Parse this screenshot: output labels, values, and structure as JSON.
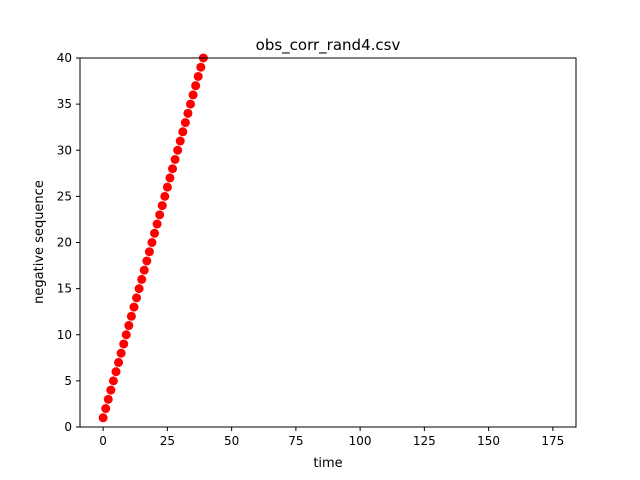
{
  "chart_data": {
    "type": "scatter",
    "title": "obs_corr_rand4.csv",
    "xlabel": "time",
    "ylabel": "negative sequence",
    "xlim": [
      -9,
      184
    ],
    "ylim": [
      0,
      40
    ],
    "x_ticks": [
      0,
      25,
      50,
      75,
      100,
      125,
      150,
      175
    ],
    "y_ticks": [
      0,
      5,
      10,
      15,
      20,
      25,
      30,
      35,
      40
    ],
    "grid": false,
    "marker_color": "#ff0000",
    "series": [
      {
        "x": [
          0,
          1,
          2,
          3,
          4,
          5,
          6,
          7,
          8,
          9,
          10,
          11,
          12,
          13,
          14,
          15,
          16,
          17,
          18,
          19,
          20,
          21,
          22,
          23,
          24,
          25,
          26,
          27,
          28,
          29,
          30,
          31,
          32,
          33,
          34,
          35,
          36,
          37,
          38,
          39
        ],
        "y": [
          1,
          2,
          3,
          4,
          5,
          6,
          7,
          8,
          9,
          10,
          11,
          12,
          13,
          14,
          15,
          16,
          17,
          18,
          19,
          20,
          21,
          22,
          23,
          24,
          25,
          26,
          27,
          28,
          29,
          30,
          31,
          32,
          33,
          34,
          35,
          36,
          37,
          38,
          39,
          40
        ]
      }
    ]
  }
}
